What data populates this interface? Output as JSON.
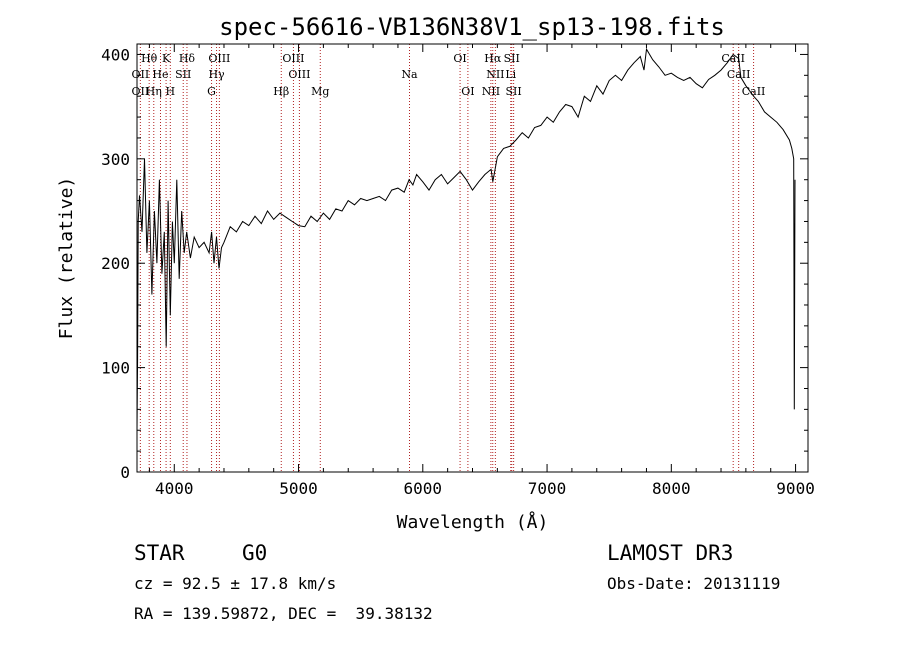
{
  "chart_data": {
    "type": "line",
    "title": "spec-56616-VB136N38V1_sp13-198.fits",
    "xlabel": "Wavelength (Å)",
    "ylabel": "Flux (relative)",
    "xlim": [
      3700,
      9100
    ],
    "ylim": [
      0,
      410
    ],
    "x_ticks": [
      4000,
      5000,
      6000,
      7000,
      8000,
      9000
    ],
    "y_ticks": [
      0,
      100,
      200,
      300,
      400
    ],
    "series": [
      {
        "name": "flux",
        "x": [
          3700,
          3705,
          3710,
          3720,
          3740,
          3760,
          3780,
          3800,
          3820,
          3840,
          3860,
          3880,
          3900,
          3920,
          3935,
          3950,
          3968,
          3985,
          4000,
          4020,
          4040,
          4060,
          4080,
          4100,
          4130,
          4160,
          4200,
          4240,
          4280,
          4300,
          4320,
          4340,
          4360,
          4380,
          4400,
          4450,
          4500,
          4550,
          4600,
          4650,
          4700,
          4750,
          4800,
          4850,
          4900,
          4950,
          5000,
          5050,
          5100,
          5150,
          5200,
          5250,
          5300,
          5350,
          5400,
          5450,
          5500,
          5550,
          5600,
          5650,
          5700,
          5750,
          5800,
          5850,
          5890,
          5920,
          5950,
          6000,
          6050,
          6100,
          6150,
          6200,
          6250,
          6300,
          6350,
          6400,
          6450,
          6500,
          6550,
          6563,
          6600,
          6650,
          6700,
          6750,
          6800,
          6850,
          6900,
          6950,
          7000,
          7050,
          7100,
          7150,
          7200,
          7250,
          7300,
          7350,
          7400,
          7450,
          7500,
          7550,
          7600,
          7650,
          7700,
          7750,
          7780,
          7800,
          7850,
          7900,
          7950,
          8000,
          8050,
          8100,
          8150,
          8200,
          8250,
          8300,
          8350,
          8400,
          8450,
          8498,
          8542,
          8560,
          8600,
          8662,
          8700,
          8750,
          8800,
          8850,
          8900,
          8950,
          8970,
          8985,
          8990,
          8995
        ],
        "y": [
          40,
          110,
          240,
          265,
          230,
          300,
          210,
          260,
          170,
          250,
          200,
          280,
          190,
          230,
          120,
          260,
          150,
          240,
          200,
          280,
          185,
          250,
          210,
          230,
          205,
          225,
          215,
          220,
          210,
          230,
          200,
          225,
          195,
          215,
          220,
          235,
          230,
          240,
          236,
          245,
          238,
          250,
          242,
          248,
          244,
          240,
          236,
          235,
          245,
          240,
          248,
          242,
          252,
          250,
          260,
          256,
          262,
          260,
          262,
          264,
          260,
          270,
          272,
          268,
          280,
          275,
          285,
          278,
          270,
          280,
          285,
          276,
          282,
          288,
          280,
          270,
          278,
          285,
          290,
          278,
          302,
          310,
          312,
          318,
          325,
          320,
          330,
          332,
          340,
          335,
          345,
          352,
          350,
          340,
          360,
          355,
          370,
          362,
          375,
          380,
          375,
          385,
          392,
          398,
          385,
          405,
          395,
          388,
          380,
          382,
          378,
          375,
          378,
          372,
          368,
          376,
          380,
          385,
          392,
          400,
          396,
          378,
          370,
          360,
          355,
          345,
          340,
          335,
          328,
          318,
          310,
          300,
          60,
          280
        ]
      }
    ],
    "lines_upper": [
      {
        "label": "Hθ",
        "wave": 3798
      },
      {
        "label": "K",
        "wave": 3934
      },
      {
        "label": "Hδ",
        "wave": 4102
      },
      {
        "label": "OIII",
        "wave": 4363
      },
      {
        "label": "OIII",
        "wave": 4959
      },
      {
        "label": "OI",
        "wave": 6300
      },
      {
        "label": "Hα",
        "wave": 6563
      },
      {
        "label": "SII",
        "wave": 6716
      },
      {
        "label": "CaII",
        "wave": 8498
      }
    ],
    "lines_middle": [
      {
        "label": "OII",
        "wave": 3727
      },
      {
        "label": "He",
        "wave": 3889
      },
      {
        "label": "SII",
        "wave": 4072
      },
      {
        "label": "Hγ",
        "wave": 4340
      },
      {
        "label": "OIII",
        "wave": 5007
      },
      {
        "label": "Na",
        "wave": 5893
      },
      {
        "label": "NII",
        "wave": 6584
      },
      {
        "label": "Li",
        "wave": 6708
      },
      {
        "label": "CaII",
        "wave": 8542
      }
    ],
    "lines_lower": [
      {
        "label": "OII",
        "wave": 3727
      },
      {
        "label": "Hη",
        "wave": 3835
      },
      {
        "label": "H",
        "wave": 3968
      },
      {
        "label": "G",
        "wave": 4300
      },
      {
        "label": "Hβ",
        "wave": 4861
      },
      {
        "label": "Mg",
        "wave": 5175
      },
      {
        "label": "OI",
        "wave": 6363
      },
      {
        "label": "NII",
        "wave": 6548
      },
      {
        "label": "SII",
        "wave": 6731
      },
      {
        "label": "CaII",
        "wave": 8662
      }
    ]
  },
  "info": {
    "class": "STAR",
    "subclass": "G0",
    "survey": "LAMOST DR3",
    "velocity": "cz = 92.5 ± 17.8 km/s",
    "obs_date": "Obs-Date: 20131119",
    "coords": "RA = 139.59872, DEC =  39.38132"
  },
  "colors": {
    "line": "#000000",
    "marker": "#b22222",
    "axis": "#000000"
  }
}
